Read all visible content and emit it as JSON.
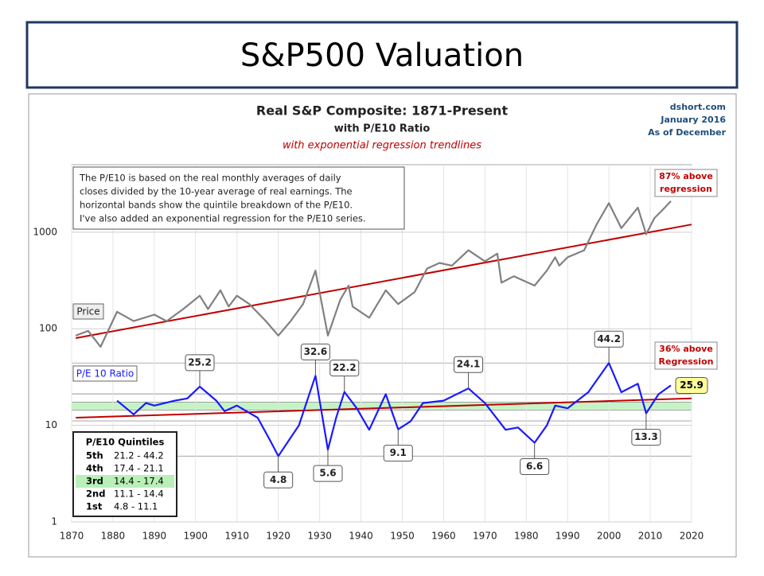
{
  "slide_title": "S&P500 Valuation",
  "chart_data": {
    "type": "line",
    "title": "Real S&P Composite: 1871-Present",
    "subtitle": "with P/E10 Ratio",
    "subtitle2": "with exponential regression trendlines",
    "source": [
      "dshort.com",
      "January 2016",
      "As of December"
    ],
    "note": [
      "The P/E10 is based on the real monthly averages of daily",
      "closes divided by the 10-year average of real earnings. The",
      "horizontal bands show the quintile breakdown of the P/E10.",
      "I've also added an exponential regression for the P/E10 series."
    ],
    "log_scale": true,
    "grid": true,
    "xlim": [
      1870,
      2020
    ],
    "ylim": [
      1,
      5000
    ],
    "xticks": [
      1870,
      1880,
      1890,
      1900,
      1910,
      1920,
      1930,
      1940,
      1950,
      1960,
      1970,
      1980,
      1990,
      2000,
      2010,
      2020
    ],
    "yticks": [
      1,
      10,
      100,
      1000
    ],
    "series": [
      {
        "name": "Price",
        "color": "#808080",
        "x": [
          1871,
          1874,
          1877,
          1881,
          1885,
          1890,
          1893,
          1897,
          1901,
          1903,
          1906,
          1908,
          1910,
          1913,
          1917,
          1920,
          1923,
          1926,
          1929,
          1932,
          1935,
          1937,
          1938,
          1942,
          1946,
          1949,
          1953,
          1956,
          1959,
          1962,
          1966,
          1970,
          1973,
          1974,
          1977,
          1982,
          1985,
          1987,
          1988,
          1990,
          1994,
          1997,
          2000,
          2003,
          2007,
          2009,
          2011,
          2013,
          2015
        ],
        "values": [
          85,
          95,
          65,
          150,
          120,
          140,
          120,
          160,
          220,
          160,
          250,
          170,
          220,
          180,
          120,
          85,
          120,
          180,
          400,
          85,
          200,
          280,
          170,
          130,
          250,
          180,
          240,
          420,
          480,
          450,
          650,
          500,
          600,
          300,
          350,
          280,
          400,
          550,
          450,
          550,
          650,
          1200,
          2000,
          1100,
          1800,
          950,
          1400,
          1700,
          2100
        ]
      },
      {
        "name": "P/E 10 Ratio",
        "color": "#1a1aff",
        "end_label": "25.9",
        "x": [
          1881,
          1885,
          1888,
          1890,
          1895,
          1898,
          1901,
          1905,
          1907,
          1910,
          1915,
          1918,
          1920,
          1925,
          1929,
          1932,
          1934,
          1936,
          1939,
          1942,
          1946,
          1949,
          1952,
          1955,
          1960,
          1966,
          1970,
          1975,
          1978,
          1982,
          1985,
          1987,
          1990,
          1995,
          2000,
          2003,
          2007,
          2009,
          2012,
          2015
        ],
        "values": [
          18,
          13,
          17,
          16,
          18,
          19,
          25.2,
          18,
          14,
          16,
          12,
          7,
          4.8,
          10,
          32.6,
          5.6,
          12,
          22.2,
          15,
          9,
          21,
          9.1,
          11,
          17,
          18,
          24.1,
          17,
          9,
          9.5,
          6.6,
          10,
          16,
          15,
          22,
          44.2,
          22,
          27,
          13.3,
          21,
          25.9
        ]
      }
    ],
    "trendlines": [
      {
        "name": "Price regression",
        "color": "#c00000",
        "x": [
          1871,
          2020
        ],
        "values": [
          80,
          1200
        ]
      },
      {
        "name": "P/E10 regression",
        "color": "#c00000",
        "x": [
          1871,
          2020
        ],
        "values": [
          12,
          19
        ]
      }
    ],
    "annotations": [
      {
        "label": "25.2",
        "x": 1901,
        "y": 25.2
      },
      {
        "label": "4.8",
        "x": 1920,
        "y": 4.8
      },
      {
        "label": "32.6",
        "x": 1929,
        "y": 32.6
      },
      {
        "label": "5.6",
        "x": 1932,
        "y": 5.6
      },
      {
        "label": "22.2",
        "x": 1936,
        "y": 22.2
      },
      {
        "label": "9.1",
        "x": 1949,
        "y": 9.1
      },
      {
        "label": "24.1",
        "x": 1966,
        "y": 24.1
      },
      {
        "label": "6.6",
        "x": 1982,
        "y": 6.6
      },
      {
        "label": "44.2",
        "x": 2000,
        "y": 44.2
      },
      {
        "label": "13.3",
        "x": 2009,
        "y": 13.3
      }
    ],
    "callouts": [
      [
        "87% above",
        "regression"
      ],
      [
        "36% above",
        "Regression"
      ]
    ],
    "quintiles_title": "P/E10 Quintiles",
    "quintiles": [
      {
        "name": "5th",
        "range": "21.2 - 44.2",
        "low": 21.2,
        "high": 44.2
      },
      {
        "name": "4th",
        "range": "17.4 - 21.1",
        "low": 17.4,
        "high": 21.1
      },
      {
        "name": "3rd",
        "range": "14.4 - 17.4",
        "low": 14.4,
        "high": 17.4,
        "color": "#b8f0b8"
      },
      {
        "name": "2nd",
        "range": "11.1 - 14.4",
        "low": 11.1,
        "high": 14.4
      },
      {
        "name": "1st",
        "range": "4.8 - 11.1",
        "low": 4.8,
        "high": 11.1
      }
    ]
  }
}
